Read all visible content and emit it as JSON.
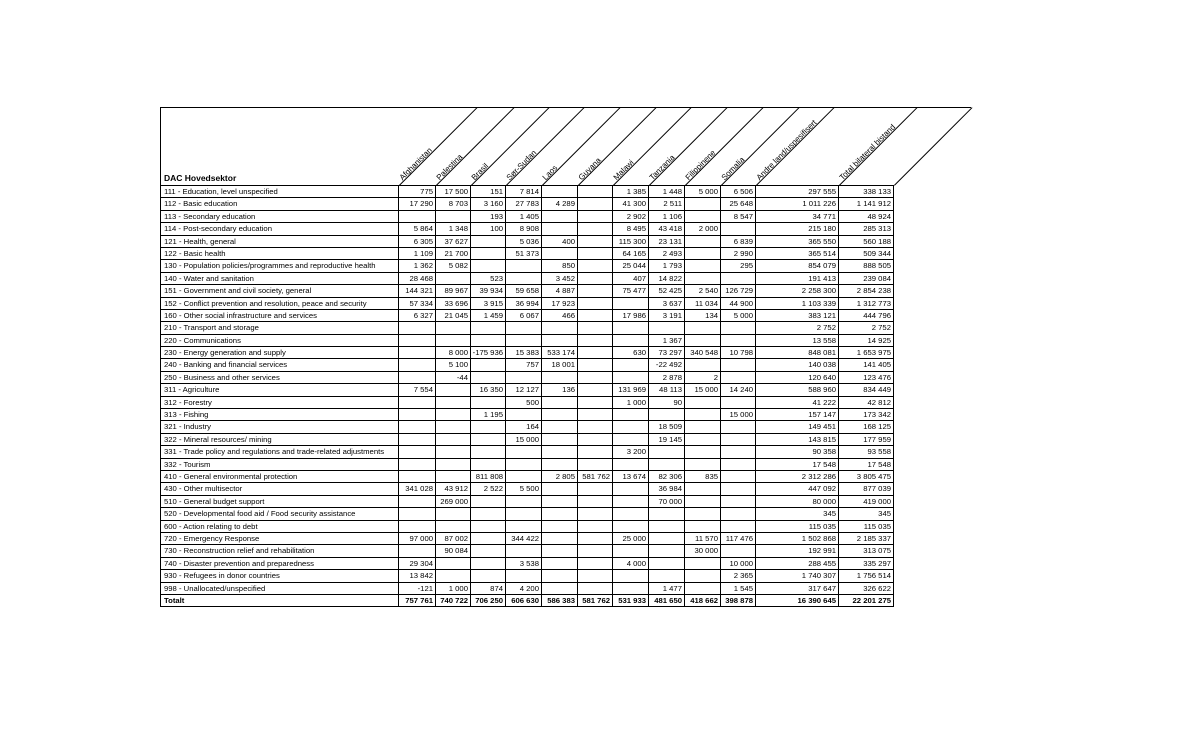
{
  "page": {
    "background": "#ffffff",
    "border_color": "#000000"
  },
  "chart_data": {
    "type": "table",
    "corner_label": "DAC Hovedsektor",
    "columns": [
      "Afghanistan",
      "Palestina",
      "Brasil",
      "Sør-Sudan",
      "Laos",
      "Guyana",
      "Malawi",
      "Tanzania",
      "Filippinene",
      "Somalia",
      "Andre land/uspesifisert",
      "Total bilateral bistand"
    ],
    "rows": [
      {
        "label": "111 - Education, level unspecified",
        "values": [
          "775",
          "17 500",
          "151",
          "7 814",
          "",
          "",
          "1 385",
          "1 448",
          "5 000",
          "6 506",
          "297 555",
          "338 133"
        ]
      },
      {
        "label": "112 - Basic education",
        "values": [
          "17 290",
          "8 703",
          "3 160",
          "27 783",
          "4 289",
          "",
          "41 300",
          "2 511",
          "",
          "25 648",
          "1 011 226",
          "1 141 912"
        ]
      },
      {
        "label": "113 - Secondary education",
        "values": [
          "",
          "",
          "193",
          "1 405",
          "",
          "",
          "2 902",
          "1 106",
          "",
          "8 547",
          "34 771",
          "48 924"
        ]
      },
      {
        "label": "114 - Post-secondary education",
        "values": [
          "5 864",
          "1 348",
          "100",
          "8 908",
          "",
          "",
          "8 495",
          "43 418",
          "2 000",
          "",
          "215 180",
          "285 313"
        ]
      },
      {
        "label": "121 - Health, general",
        "values": [
          "6 305",
          "37 627",
          "",
          "5 036",
          "400",
          "",
          "115 300",
          "23 131",
          "",
          "6 839",
          "365 550",
          "560 188"
        ]
      },
      {
        "label": "122 - Basic health",
        "values": [
          "1 109",
          "21 700",
          "",
          "51 373",
          "",
          "",
          "64 165",
          "2 493",
          "",
          "2 990",
          "365 514",
          "509 344"
        ]
      },
      {
        "label": "130 - Population policies/programmes and reproductive health",
        "values": [
          "1 362",
          "5 082",
          "",
          "",
          "850",
          "",
          "25 044",
          "1 793",
          "",
          "295",
          "854 079",
          "888 505"
        ]
      },
      {
        "label": "140 - Water and sanitation",
        "values": [
          "28 468",
          "",
          "523",
          "",
          "3 452",
          "",
          "407",
          "14 822",
          "",
          "",
          "191 413",
          "239 084"
        ]
      },
      {
        "label": "151 - Government and civil society, general",
        "values": [
          "144 321",
          "89 967",
          "39 934",
          "59 658",
          "4 887",
          "",
          "75 477",
          "52 425",
          "2 540",
          "126 729",
          "2 258 300",
          "2 854 238"
        ]
      },
      {
        "label": "152 - Conflict prevention and resolution, peace and security",
        "values": [
          "57 334",
          "33 696",
          "3 915",
          "36 994",
          "17 923",
          "",
          "",
          "3 637",
          "11 034",
          "44 900",
          "1 103 339",
          "1 312 773"
        ]
      },
      {
        "label": "160 - Other social infrastructure and services",
        "values": [
          "6 327",
          "21 045",
          "1 459",
          "6 067",
          "466",
          "",
          "17 986",
          "3 191",
          "134",
          "5 000",
          "383 121",
          "444 796"
        ]
      },
      {
        "label": "210 - Transport and storage",
        "values": [
          "",
          "",
          "",
          "",
          "",
          "",
          "",
          "",
          "",
          "",
          "2 752",
          "2 752"
        ]
      },
      {
        "label": "220 - Communications",
        "values": [
          "",
          "",
          "",
          "",
          "",
          "",
          "",
          "1 367",
          "",
          "",
          "13 558",
          "14 925"
        ]
      },
      {
        "label": "230 - Energy generation and supply",
        "values": [
          "",
          "8 000",
          "-175 936",
          "15 383",
          "533 174",
          "",
          "630",
          "73 297",
          "340 548",
          "10 798",
          "848 081",
          "1 653 975"
        ]
      },
      {
        "label": "240 - Banking and financial services",
        "values": [
          "",
          "5 100",
          "",
          "757",
          "18 001",
          "",
          "",
          "-22 492",
          "",
          "",
          "140 038",
          "141 405"
        ]
      },
      {
        "label": "250 - Business and other services",
        "values": [
          "",
          "-44",
          "",
          "",
          "",
          "",
          "",
          "2 878",
          "2",
          "",
          "120 640",
          "123 476"
        ]
      },
      {
        "label": "311 - Agriculture",
        "values": [
          "7 554",
          "",
          "16 350",
          "12 127",
          "136",
          "",
          "131 969",
          "48 113",
          "15 000",
          "14 240",
          "588 960",
          "834 449"
        ]
      },
      {
        "label": "312 - Forestry",
        "values": [
          "",
          "",
          "",
          "500",
          "",
          "",
          "1 000",
          "90",
          "",
          "",
          "41 222",
          "42 812"
        ]
      },
      {
        "label": "313 - Fishing",
        "values": [
          "",
          "",
          "1 195",
          "",
          "",
          "",
          "",
          "",
          "",
          "15 000",
          "157 147",
          "173 342"
        ]
      },
      {
        "label": "321 - Industry",
        "values": [
          "",
          "",
          "",
          "164",
          "",
          "",
          "",
          "18 509",
          "",
          "",
          "149 451",
          "168 125"
        ]
      },
      {
        "label": "322 - Mineral resources/ mining",
        "values": [
          "",
          "",
          "",
          "15 000",
          "",
          "",
          "",
          "19 145",
          "",
          "",
          "143 815",
          "177 959"
        ]
      },
      {
        "label": "331 - Trade policy and regulations and trade-related adjustments",
        "values": [
          "",
          "",
          "",
          "",
          "",
          "",
          "3 200",
          "",
          "",
          "",
          "90 358",
          "93 558"
        ]
      },
      {
        "label": "332 - Tourism",
        "values": [
          "",
          "",
          "",
          "",
          "",
          "",
          "",
          "",
          "",
          "",
          "17 548",
          "17 548"
        ]
      },
      {
        "label": "410 - General environmental protection",
        "values": [
          "",
          "",
          "811 808",
          "",
          "2 805",
          "581 762",
          "13 674",
          "82 306",
          "835",
          "",
          "2 312 286",
          "3 805 475"
        ]
      },
      {
        "label": "430 - Other multisector",
        "values": [
          "341 028",
          "43 912",
          "2 522",
          "5 500",
          "",
          "",
          "",
          "36 984",
          "",
          "",
          "447 092",
          "877 039"
        ]
      },
      {
        "label": "510 - General budget support",
        "values": [
          "",
          "269 000",
          "",
          "",
          "",
          "",
          "",
          "70 000",
          "",
          "",
          "80 000",
          "419 000"
        ]
      },
      {
        "label": "520 - Developmental food aid / Food security assistance",
        "values": [
          "",
          "",
          "",
          "",
          "",
          "",
          "",
          "",
          "",
          "",
          "345",
          "345"
        ]
      },
      {
        "label": "600 - Action relating to debt",
        "values": [
          "",
          "",
          "",
          "",
          "",
          "",
          "",
          "",
          "",
          "",
          "115 035",
          "115 035"
        ]
      },
      {
        "label": "720 - Emergency Response",
        "values": [
          "97 000",
          "87 002",
          "",
          "344 422",
          "",
          "",
          "25 000",
          "",
          "11 570",
          "117 476",
          "1 502 868",
          "2 185 337"
        ]
      },
      {
        "label": "730 - Reconstruction relief and rehabilitation",
        "values": [
          "",
          "90 084",
          "",
          "",
          "",
          "",
          "",
          "",
          "30 000",
          "",
          "192 991",
          "313 075"
        ]
      },
      {
        "label": "740 - Disaster prevention and preparedness",
        "values": [
          "29 304",
          "",
          "",
          "3 538",
          "",
          "",
          "4 000",
          "",
          "",
          "10 000",
          "288 455",
          "335 297"
        ]
      },
      {
        "label": "930 - Refugees in donor countries",
        "values": [
          "13 842",
          "",
          "",
          "",
          "",
          "",
          "",
          "",
          "",
          "2 365",
          "1 740 307",
          "1 756 514"
        ]
      },
      {
        "label": "998 - Unallocated/unspecified",
        "values": [
          "-121",
          "1 000",
          "874",
          "4 200",
          "",
          "",
          "",
          "1 477",
          "",
          "1 545",
          "317 647",
          "326 622"
        ]
      }
    ],
    "total_row": {
      "label": "Totalt",
      "values": [
        "757 761",
        "740 722",
        "706 250",
        "606 630",
        "586 383",
        "581 762",
        "531 933",
        "481 650",
        "418 662",
        "398 878",
        "16 390 645",
        "22 201 275"
      ]
    }
  }
}
